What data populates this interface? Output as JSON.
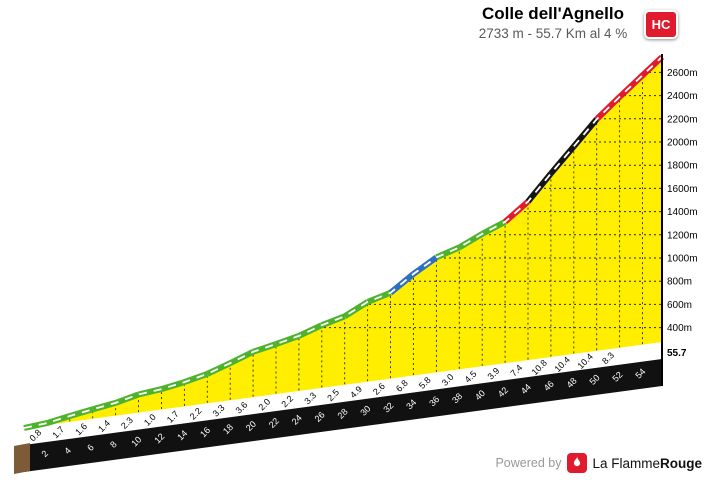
{
  "header": {
    "title": "Colle dell'Agnello",
    "subtitle": "2733 m - 55.7 Km al 4 %",
    "badge": "HC"
  },
  "footer": {
    "powered_by": "Powered by",
    "brand_prefix": "La Flamme",
    "brand_suffix": "Rouge"
  },
  "icons": {
    "badge": "hc-badge",
    "brand": "flame-icon"
  },
  "chart_data": {
    "type": "area",
    "title": "Colle dell'Agnello",
    "subtitle": "2733 m - 55.7 Km al 4 %",
    "category": "HC",
    "summit_elevation_m": 2733,
    "total_distance_km": 55.7,
    "avg_gradient_pct": 4,
    "x_unit": "km",
    "y_unit": "m",
    "x_range_km": [
      0,
      55.7
    ],
    "elevation_axis_range_m": [
      400,
      2600
    ],
    "elevation_ticks": [
      2600,
      2400,
      2200,
      2000,
      1800,
      1600,
      1400,
      1200,
      1000,
      800,
      600,
      400
    ],
    "km_ticks": [
      2,
      4,
      6,
      8,
      10,
      12,
      14,
      16,
      18,
      20,
      22,
      24,
      26,
      28,
      30,
      32,
      34,
      36,
      38,
      40,
      42,
      44,
      46,
      48,
      50,
      52,
      54
    ],
    "end_distance_label": "55.7",
    "segments": [
      {
        "km_from": 0,
        "km_to": 2,
        "grad": 0.8,
        "label": "0.8"
      },
      {
        "km_from": 2,
        "km_to": 4,
        "grad": 1.7,
        "label": "1.7"
      },
      {
        "km_from": 4,
        "km_to": 6,
        "grad": 1.6,
        "label": "1.6"
      },
      {
        "km_from": 6,
        "km_to": 8,
        "grad": 1.4,
        "label": "1.4"
      },
      {
        "km_from": 8,
        "km_to": 10,
        "grad": 2.3,
        "label": "2.3"
      },
      {
        "km_from": 10,
        "km_to": 12,
        "grad": 1.0,
        "label": "1.0"
      },
      {
        "km_from": 12,
        "km_to": 14,
        "grad": 1.7,
        "label": "1.7"
      },
      {
        "km_from": 14,
        "km_to": 16,
        "grad": 2.2,
        "label": "2.2"
      },
      {
        "km_from": 16,
        "km_to": 18,
        "grad": 3.3,
        "label": "3.3"
      },
      {
        "km_from": 18,
        "km_to": 20,
        "grad": 3.6,
        "label": "3.6"
      },
      {
        "km_from": 20,
        "km_to": 22,
        "grad": 2.0,
        "label": "2.0"
      },
      {
        "km_from": 22,
        "km_to": 24,
        "grad": 2.2,
        "label": "2.2"
      },
      {
        "km_from": 24,
        "km_to": 26,
        "grad": 3.3,
        "label": "3.3"
      },
      {
        "km_from": 26,
        "km_to": 28,
        "grad": 2.5,
        "label": "2.5"
      },
      {
        "km_from": 28,
        "km_to": 30,
        "grad": 4.9,
        "label": "4.9"
      },
      {
        "km_from": 30,
        "km_to": 32,
        "grad": 2.6,
        "label": "2.6"
      },
      {
        "km_from": 32,
        "km_to": 34,
        "grad": 6.8,
        "label": "6.8"
      },
      {
        "km_from": 34,
        "km_to": 36,
        "grad": 5.8,
        "label": "5.8"
      },
      {
        "km_from": 36,
        "km_to": 38,
        "grad": 3.0,
        "label": "3.0"
      },
      {
        "km_from": 38,
        "km_to": 40,
        "grad": 4.5,
        "label": "4.5"
      },
      {
        "km_from": 40,
        "km_to": 42,
        "grad": 3.9,
        "label": "3.9"
      },
      {
        "km_from": 42,
        "km_to": 44,
        "grad": 7.4,
        "label": "7.4"
      },
      {
        "km_from": 44,
        "km_to": 46,
        "grad": 10.8,
        "label": "10.8"
      },
      {
        "km_from": 46,
        "km_to": 48,
        "grad": 10.4,
        "label": "10.4"
      },
      {
        "km_from": 48,
        "km_to": 50,
        "grad": 10.4,
        "label": "10.4"
      },
      {
        "km_from": 50,
        "km_to": 52,
        "grad": 8.3,
        "label": "8.3"
      },
      {
        "km_from": 52,
        "km_to": 55.7,
        "grad": 8.0,
        "label": ""
      }
    ],
    "gradient_color_rules": [
      {
        "below": 5,
        "color": "green"
      },
      {
        "below": 7,
        "color": "blue"
      },
      {
        "below": 10,
        "color": "red"
      },
      {
        "below": 999,
        "color": "black"
      }
    ],
    "colors": {
      "fill": "#ffee00",
      "green": "#4db32c",
      "blue": "#2f6fc0",
      "red": "#e11b2e",
      "black": "#141414",
      "base_strip": "#111111",
      "base_cap": "#7d5b36",
      "band_dash": "#ffffff"
    },
    "grid": true,
    "legend": false
  }
}
